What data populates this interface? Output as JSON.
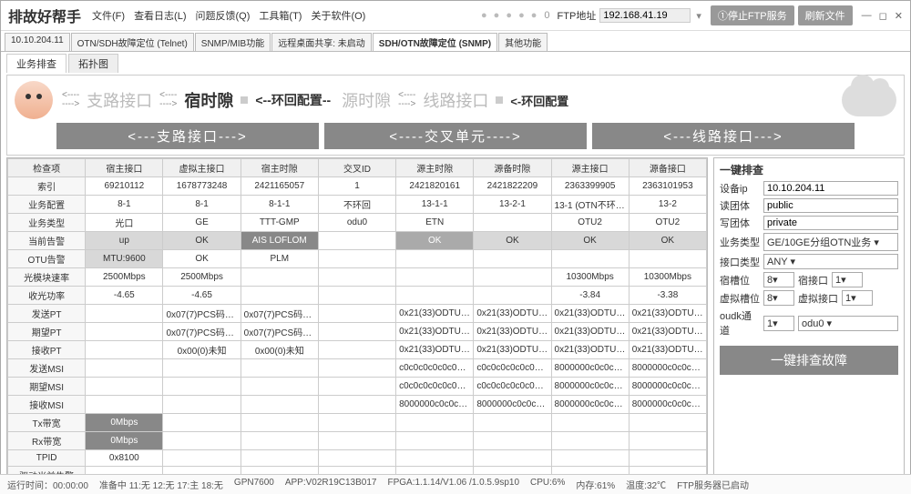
{
  "window": {
    "title": "排故好帮手",
    "menu": [
      "文件(F)",
      "查看日志(L)",
      "问题反馈(Q)",
      "工具箱(T)",
      "关于软件(O)"
    ],
    "ftp_label": "FTP地址",
    "ftp_addr": "192.168.41.19",
    "btn_stop_ftp": "①停止FTP服务",
    "btn_refresh": "刷新文件",
    "zero": "0"
  },
  "tabs1": {
    "items": [
      "10.10.204.11",
      "OTN/SDH故障定位 (Telnet)",
      "SNMP/MIB功能",
      "远程桌面共享: 未启动",
      "SDH/OTN故障定位 (SNMP)",
      "其他功能"
    ],
    "active": 4
  },
  "tabs2": {
    "items": [
      "业务排查",
      "拓扑图"
    ],
    "active": 0
  },
  "header": {
    "seg_branch": "支路接口",
    "seg_dest_slot": "宿时隙",
    "seg_loop": "<--环回配置--",
    "seg_src_slot": "源时隙",
    "seg_line": "线路接口",
    "seg_loop2": "<-环回配置",
    "band_branch": "<---支路接口--->",
    "band_cross": "<----交叉单元---->",
    "band_line": "<---线路接口--->"
  },
  "table": {
    "cols": [
      "检查项",
      "宿主接口",
      "虚拟主接口",
      "宿主时隙",
      "交叉ID",
      "源主时隙",
      "源备时隙",
      "源主接口",
      "源备接口"
    ],
    "rows": [
      {
        "h": "索引",
        "c": [
          "69210112",
          "1678773248",
          "2421165057",
          "1",
          "2421820161",
          "2421822209",
          "2363399905",
          "2363101953"
        ]
      },
      {
        "h": "业务配置",
        "c": [
          "8-1",
          "8-1",
          "8-1-1",
          "不环回",
          "13-1-1",
          "13-2-1",
          "13-1 (OTN不环回)",
          "13-2"
        ]
      },
      {
        "h": "业务类型",
        "c": [
          "光口",
          "GE",
          "TTT-GMP",
          "odu0",
          "ETN",
          "",
          "OTU2",
          "OTU2"
        ]
      },
      {
        "h": "当前告警",
        "c": [
          "up",
          "OK",
          "AIS LOFLOM",
          "",
          "OK",
          "OK",
          "OK",
          "OK"
        ],
        "cls": [
          "hl-gray",
          "hl-gray",
          "hl-dark",
          "",
          "hl-mid",
          "hl-gray",
          "hl-gray",
          "hl-gray"
        ]
      },
      {
        "h": "OTU告警",
        "c": [
          "MTU:9600",
          "OK",
          "PLM",
          "",
          "",
          "",
          "",
          ""
        ],
        "cls": [
          "hl-gray",
          "",
          "",
          "",
          "",
          "",
          "",
          ""
        ]
      },
      {
        "h": "光模块速率",
        "c": [
          "2500Mbps",
          "2500Mbps",
          "",
          "",
          "",
          "",
          "10300Mbps",
          "10300Mbps"
        ]
      },
      {
        "h": "收光功率",
        "c": [
          "-4.65",
          "-4.65",
          "",
          "",
          "",
          "",
          "-3.84",
          "-3.38"
        ]
      },
      {
        "h": "发送PT",
        "c": [
          "",
          "0x07(7)PCS码字..",
          "0x07(7)PCS码字..",
          "",
          "0x21(33)ODTUK..",
          "0x21(33)ODTUK..",
          "0x21(33)ODTUK..",
          "0x21(33)ODTUK.."
        ]
      },
      {
        "h": "期望PT",
        "c": [
          "",
          "0x07(7)PCS码字..",
          "0x07(7)PCS码字..",
          "",
          "0x21(33)ODTUK..",
          "0x21(33)ODTUK..",
          "0x21(33)ODTUK..",
          "0x21(33)ODTUK.."
        ]
      },
      {
        "h": "接收PT",
        "c": [
          "",
          "0x00(0)未知",
          "0x00(0)未知",
          "",
          "0x21(33)ODTUK..",
          "0x21(33)ODTUK..",
          "0x21(33)ODTUK..",
          "0x21(33)ODTUK.."
        ]
      },
      {
        "h": "发送MSI",
        "c": [
          "",
          "",
          "",
          "",
          "c0c0c0c0c0c0c0c0",
          "c0c0c0c0c0c0c0c0",
          "8000000c0c0c0c0",
          "8000000c0c0c0c0"
        ]
      },
      {
        "h": "期望MSI",
        "c": [
          "",
          "",
          "",
          "",
          "c0c0c0c0c0c0c0c0",
          "c0c0c0c0c0c0c0c0",
          "8000000c0c0c0c0",
          "8000000c0c0c0c0"
        ]
      },
      {
        "h": "接收MSI",
        "c": [
          "",
          "",
          "",
          "",
          "8000000c0c0c0c0",
          "8000000c0c0c0c0",
          "8000000c0c0c0c0",
          "8000000c0c0c0c0"
        ]
      },
      {
        "h": "Tx带宽",
        "c": [
          "0Mbps",
          "",
          "",
          "",
          "",
          "",
          "",
          ""
        ],
        "cls": [
          "hl-dark",
          "",
          "",
          "",
          "",
          "",
          "",
          ""
        ]
      },
      {
        "h": "Rx带宽",
        "c": [
          "0Mbps",
          "",
          "",
          "",
          "",
          "",
          "",
          ""
        ],
        "cls": [
          "hl-dark",
          "",
          "",
          "",
          "",
          "",
          "",
          ""
        ]
      },
      {
        "h": "TPID",
        "c": [
          "0x8100",
          "",
          "",
          "",
          "",
          "",
          "",
          ""
        ]
      },
      {
        "h": "驱动当前告警",
        "c": [
          "",
          "",
          "",
          "",
          "",
          "",
          "",
          ""
        ]
      }
    ]
  },
  "side": {
    "title": "一键排查",
    "dev_ip_lbl": "设备ip",
    "dev_ip": "10.10.204.11",
    "read_lbl": "读团体",
    "read": "public",
    "write_lbl": "写团体",
    "write": "private",
    "svc_lbl": "业务类型",
    "svc": "GE/10GE分组OTN业务",
    "if_lbl": "接口类型",
    "if": "ANY",
    "dslot_lbl": "宿槽位",
    "dslot": "8",
    "dport_lbl": "宿接口",
    "dport": "1",
    "vslot_lbl": "虚拟槽位",
    "vslot": "8",
    "vport_lbl": "虚拟接口",
    "vport": "1",
    "oduk_lbl": "oudk通道",
    "oduk_n": "1",
    "oduk_v": "odu0",
    "btn": "一键排查故障"
  },
  "status": {
    "runtime": "运行时间：00:00:00",
    "ready": "准备中 11:无 12:无 17:主 18:无",
    "dev": "GPN7600",
    "app": "APP:V02R19C13B017",
    "fpga": "FPGA:1.1.14/V1.06 /1.0.5.9sp10",
    "cpu": "CPU:6%",
    "mem": "内存:61%",
    "temp": "温度:32℃",
    "ftp": "FTP服务器已启动"
  }
}
